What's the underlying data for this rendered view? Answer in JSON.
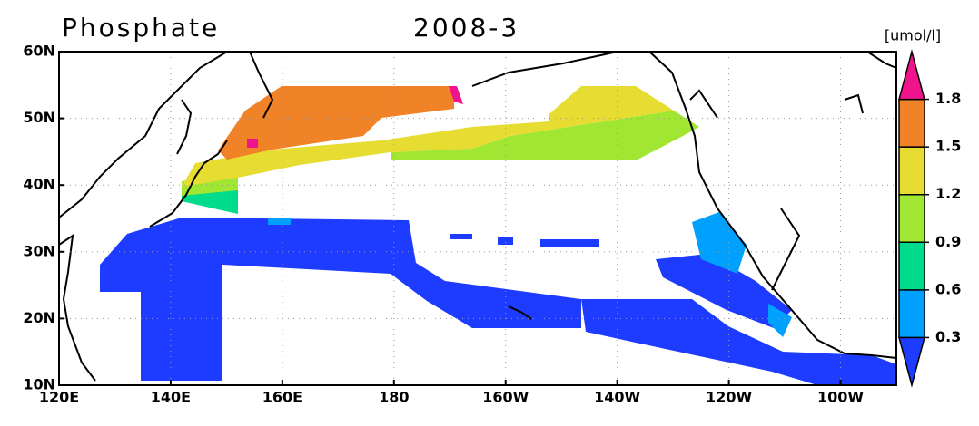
{
  "title": "Phosphate",
  "subtitle": "2008-3",
  "unit": "[umol/l]",
  "x_labels": [
    "120E",
    "140E",
    "160E",
    "180",
    "160W",
    "140W",
    "120W",
    "100W"
  ],
  "y_labels": [
    "10N",
    "20N",
    "30N",
    "40N",
    "50N",
    "60N"
  ],
  "colorbar": {
    "levels": [
      0.3,
      0.6,
      0.9,
      1.2,
      1.5,
      1.8
    ],
    "colors": [
      "#1e3cff",
      "#00a0ff",
      "#00dc8c",
      "#a0e632",
      "#e6dc32",
      "#f08228",
      "#f0148c"
    ]
  }
}
